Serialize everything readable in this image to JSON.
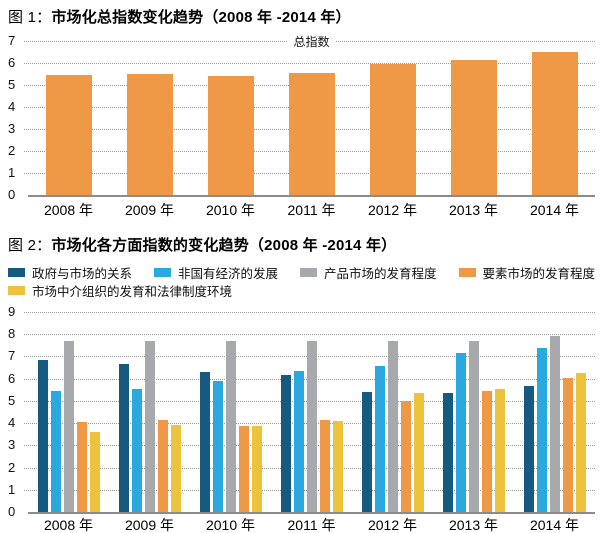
{
  "page": {
    "background": "#ffffff"
  },
  "chart_data": [
    {
      "type": "bar",
      "title_prefix": "图 1：",
      "title": "市场化总指数变化趋势（2008 年 -2014 年）",
      "series_label": "总指数",
      "categories": [
        "2008 年",
        "2009 年",
        "2010 年",
        "2011 年",
        "2012 年",
        "2013 年",
        "2014 年"
      ],
      "values": [
        5.45,
        5.5,
        5.4,
        5.55,
        5.95,
        6.15,
        6.5
      ],
      "ylabel": "",
      "xlabel": "",
      "ylim": [
        0,
        7
      ],
      "ytick_step": 1,
      "grid": "horizontal-dotted",
      "legend_position": "top-center-inline",
      "bar_color": "#EF9846"
    },
    {
      "type": "bar",
      "title_prefix": "图 2：",
      "title": "市场化各方面指数的变化趋势（2008 年 -2014 年）",
      "categories": [
        "2008 年",
        "2009 年",
        "2010 年",
        "2011 年",
        "2012 年",
        "2013 年",
        "2014 年"
      ],
      "series": [
        {
          "name": "政府与市场的关系",
          "color": "#175A80",
          "values": [
            6.85,
            6.65,
            6.3,
            6.15,
            5.4,
            5.35,
            5.65
          ]
        },
        {
          "name": "非国有经济的发展",
          "color": "#29A9E0",
          "values": [
            5.45,
            5.55,
            5.9,
            6.35,
            6.55,
            7.15,
            7.4
          ]
        },
        {
          "name": "产品市场的发育程度",
          "color": "#A7A9AC",
          "values": [
            7.7,
            7.7,
            7.7,
            7.7,
            7.7,
            7.7,
            7.9
          ]
        },
        {
          "name": "要素市场的发育程度",
          "color": "#EF9846",
          "values": [
            4.05,
            4.15,
            3.85,
            4.15,
            5.0,
            5.45,
            6.05
          ]
        },
        {
          "name": "市场中介组织的发育和法律制度环境",
          "color": "#EDC33E",
          "values": [
            3.6,
            3.9,
            3.85,
            4.1,
            5.35,
            5.55,
            6.25
          ]
        }
      ],
      "ylabel": "",
      "xlabel": "",
      "ylim": [
        0,
        9
      ],
      "ytick_step": 1,
      "grid": "horizontal-dotted",
      "legend_position": "top"
    }
  ],
  "style": {
    "gridline_color": "#9a9a9a",
    "baseline_color": "#8b8b8b",
    "text_color": "#000000"
  }
}
